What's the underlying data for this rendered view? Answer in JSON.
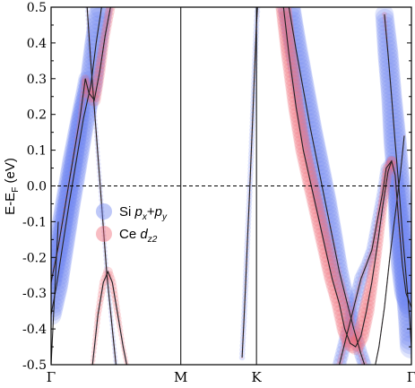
{
  "chart_data": {
    "type": "scatter",
    "title": "",
    "ylabel_parts": {
      "base": "E-E",
      "sub": "F",
      "unit": " (eV)"
    },
    "ylim": [
      -0.5,
      0.5
    ],
    "yticks": [
      0.5,
      0.4,
      0.3,
      0.2,
      0.1,
      0.0,
      -0.1,
      -0.2,
      -0.3,
      -0.4,
      -0.5
    ],
    "ytick_labels": [
      "0.5",
      "0.4",
      "0.3",
      "0.2",
      "0.1",
      "0.0",
      "-0.1",
      "-0.2",
      "-0.3",
      "-0.4",
      "-0.5"
    ],
    "kpoint_labels": [
      "Γ",
      "M",
      "K",
      "Γ"
    ],
    "kpoint_positions": [
      0.0,
      0.36,
      0.57,
      1.0
    ],
    "fermi_level": 0.0,
    "grid": false,
    "legend_position": "middle-left",
    "series": [
      {
        "name_parts": {
          "main": "Si ",
          "p1": "p",
          "s1": "x",
          "plus": "+",
          "p2": "p",
          "s2": "y"
        },
        "color": "#6f86f0"
      },
      {
        "name_parts": {
          "main": "Ce ",
          "p1": "d",
          "s1": "z2"
        },
        "color": "#f06a78"
      }
    ],
    "bands": [
      {
        "points": [
          [
            0.0,
            -0.27
          ],
          [
            0.02,
            -0.17
          ],
          [
            0.04,
            -0.05
          ],
          [
            0.06,
            0.07
          ],
          [
            0.08,
            0.19
          ],
          [
            0.095,
            0.3
          ],
          [
            0.105,
            0.26
          ],
          [
            0.12,
            0.24
          ],
          [
            0.135,
            0.32
          ],
          [
            0.15,
            0.42
          ],
          [
            0.165,
            0.5
          ]
        ],
        "si": [
          0.9,
          0.9,
          0.9,
          0.9,
          0.8,
          0.6,
          0.2,
          0.1,
          0.1,
          0.1,
          0.1
        ],
        "ce": [
          0.15,
          0.2,
          0.2,
          0.2,
          0.3,
          0.5,
          0.7,
          0.8,
          0.7,
          0.6,
          0.6
        ]
      },
      {
        "points": [
          [
            0.0,
            -0.36
          ],
          [
            0.015,
            -0.28
          ],
          [
            0.03,
            -0.18
          ],
          [
            0.05,
            -0.05
          ],
          [
            0.07,
            0.07
          ],
          [
            0.09,
            0.19
          ],
          [
            0.11,
            0.28
          ],
          [
            0.125,
            0.4
          ],
          [
            0.14,
            0.5
          ]
        ],
        "si": [
          0.9,
          1,
          1,
          1,
          1,
          1,
          1,
          1,
          1
        ],
        "ce": [
          0.1,
          0.1,
          0.1,
          0.1,
          0.1,
          0.1,
          0.1,
          0.1,
          0.1
        ]
      },
      {
        "points": [
          [
            0.1,
            0.5
          ],
          [
            0.11,
            0.35
          ],
          [
            0.125,
            0.15
          ],
          [
            0.14,
            -0.05
          ],
          [
            0.155,
            -0.25
          ],
          [
            0.17,
            -0.4
          ],
          [
            0.18,
            -0.5
          ]
        ],
        "si": [
          0.2,
          0.2,
          0.2,
          0.2,
          0.2,
          0.2,
          0.2
        ],
        "ce": [
          0.15,
          0.15,
          0.15,
          0.15,
          0.15,
          0.15,
          0.15
        ]
      },
      {
        "points": [
          [
            0.115,
            -0.5
          ],
          [
            0.13,
            -0.36
          ],
          [
            0.145,
            -0.27
          ],
          [
            0.158,
            -0.24
          ],
          [
            0.17,
            -0.27
          ],
          [
            0.185,
            -0.36
          ],
          [
            0.2,
            -0.45
          ],
          [
            0.21,
            -0.5
          ]
        ],
        "si": [
          0.1,
          0.1,
          0.1,
          0.1,
          0.1,
          0.1,
          0.1,
          0.1
        ],
        "ce": [
          0.3,
          0.4,
          0.5,
          0.6,
          0.5,
          0.4,
          0.3,
          0.3
        ]
      },
      {
        "points": [
          [
            0.53,
            -0.48
          ],
          [
            0.535,
            -0.38
          ],
          [
            0.54,
            -0.27
          ],
          [
            0.545,
            -0.15
          ],
          [
            0.55,
            -0.04
          ],
          [
            0.555,
            0.08
          ],
          [
            0.56,
            0.2
          ],
          [
            0.565,
            0.33
          ],
          [
            0.57,
            0.45
          ],
          [
            0.573,
            0.5
          ]
        ],
        "si": [
          0.25,
          0.25,
          0.25,
          0.25,
          0.25,
          0.25,
          0.25,
          0.25,
          0.25,
          0.25
        ],
        "ce": [
          0.15,
          0.15,
          0.15,
          0.15,
          0.15,
          0.15,
          0.15,
          0.15,
          0.15,
          0.15
        ]
      },
      {
        "points": [
          [
            0.0,
            -0.5
          ],
          [
            0.005,
            -0.4
          ],
          [
            0.01,
            -0.3
          ],
          [
            0.015,
            -0.2
          ],
          [
            0.02,
            -0.1
          ]
        ],
        "si": [
          0,
          0,
          0,
          0,
          0
        ],
        "ce": [
          0,
          0,
          0,
          0,
          0
        ]
      },
      {
        "points": [
          [
            0.66,
            0.5
          ],
          [
            0.68,
            0.38
          ],
          [
            0.7,
            0.27
          ],
          [
            0.72,
            0.16
          ],
          [
            0.74,
            0.06
          ],
          [
            0.76,
            -0.04
          ],
          [
            0.78,
            -0.14
          ],
          [
            0.8,
            -0.24
          ],
          [
            0.82,
            -0.32
          ],
          [
            0.84,
            -0.4
          ],
          [
            0.86,
            -0.47
          ],
          [
            0.87,
            -0.5
          ]
        ],
        "si": [
          1,
          1,
          1,
          1,
          1,
          1,
          0.9,
          0.8,
          0.7,
          0.6,
          0.6,
          0.6
        ],
        "ce": [
          0.1,
          0.1,
          0.1,
          0.1,
          0.1,
          0.1,
          0.2,
          0.3,
          0.4,
          0.4,
          0.4,
          0.4
        ]
      },
      {
        "points": [
          [
            0.645,
            0.5
          ],
          [
            0.66,
            0.37
          ],
          [
            0.68,
            0.22
          ],
          [
            0.7,
            0.1
          ],
          [
            0.72,
            0.01
          ],
          [
            0.74,
            -0.08
          ],
          [
            0.76,
            -0.17
          ],
          [
            0.78,
            -0.26
          ],
          [
            0.8,
            -0.33
          ],
          [
            0.815,
            -0.4
          ],
          [
            0.83,
            -0.44
          ],
          [
            0.845,
            -0.45
          ],
          [
            0.86,
            -0.42
          ],
          [
            0.875,
            -0.35
          ],
          [
            0.89,
            -0.27
          ],
          [
            0.905,
            -0.17
          ],
          [
            0.92,
            -0.06
          ],
          [
            0.935,
            0.04
          ],
          [
            0.945,
            0.07
          ]
        ],
        "si": [
          0.1,
          0.1,
          0.1,
          0.1,
          0.1,
          0.1,
          0.1,
          0.1,
          0.1,
          0.1,
          0.1,
          0.1,
          0.1,
          0.1,
          0.1,
          0.1,
          0.1,
          0.1,
          0.1
        ],
        "ce": [
          1,
          1,
          1,
          1,
          1,
          1,
          1,
          1,
          1,
          1,
          1,
          1,
          1,
          1,
          0.8,
          0.7,
          0.6,
          0.6,
          0.6
        ]
      },
      {
        "points": [
          [
            0.8,
            -0.5
          ],
          [
            0.82,
            -0.42
          ],
          [
            0.84,
            -0.34
          ],
          [
            0.86,
            -0.26
          ],
          [
            0.875,
            -0.22
          ],
          [
            0.89,
            -0.18
          ],
          [
            0.905,
            -0.1
          ],
          [
            0.92,
            -0.02
          ],
          [
            0.93,
            0.05
          ],
          [
            0.945,
            0.07
          ],
          [
            0.955,
            0.03
          ],
          [
            0.965,
            -0.1
          ],
          [
            0.975,
            -0.22
          ],
          [
            0.985,
            -0.3
          ],
          [
            1.0,
            -0.34
          ]
        ],
        "si": [
          0.6,
          0.6,
          0.6,
          0.6,
          0.5,
          0.5,
          0.5,
          0.5,
          0.5,
          0.5,
          0.7,
          0.9,
          1,
          1,
          1
        ],
        "ce": [
          0.4,
          0.4,
          0.3,
          0.3,
          0.3,
          0.3,
          0.3,
          0.4,
          0.5,
          0.6,
          0.3,
          0.2,
          0.1,
          0.1,
          0.1
        ]
      },
      {
        "points": [
          [
            0.925,
            0.48
          ],
          [
            0.935,
            0.37
          ],
          [
            0.945,
            0.25
          ],
          [
            0.955,
            0.12
          ],
          [
            0.965,
            0.0
          ],
          [
            0.975,
            -0.13
          ],
          [
            0.985,
            -0.25
          ],
          [
            0.995,
            -0.37
          ],
          [
            1.0,
            -0.45
          ]
        ],
        "si": [
          0.8,
          0.9,
          0.9,
          1,
          1,
          1,
          1,
          1,
          1
        ],
        "ce": [
          0.3,
          0.1,
          0.1,
          0.1,
          0.1,
          0.1,
          0.1,
          0.1,
          0.1
        ]
      },
      {
        "points": [
          [
            0.9,
            -0.5
          ],
          [
            0.91,
            -0.45
          ],
          [
            0.925,
            -0.34
          ],
          [
            0.94,
            -0.2
          ],
          [
            0.955,
            -0.08
          ],
          [
            0.97,
            0.04
          ],
          [
            0.98,
            0.14
          ]
        ],
        "si": [
          0.05,
          0.05,
          0.05,
          0.05,
          0.05,
          0.05,
          0.05
        ],
        "ce": [
          0.1,
          0.1,
          0.1,
          0.1,
          0.1,
          0.1,
          0.1
        ]
      }
    ]
  }
}
